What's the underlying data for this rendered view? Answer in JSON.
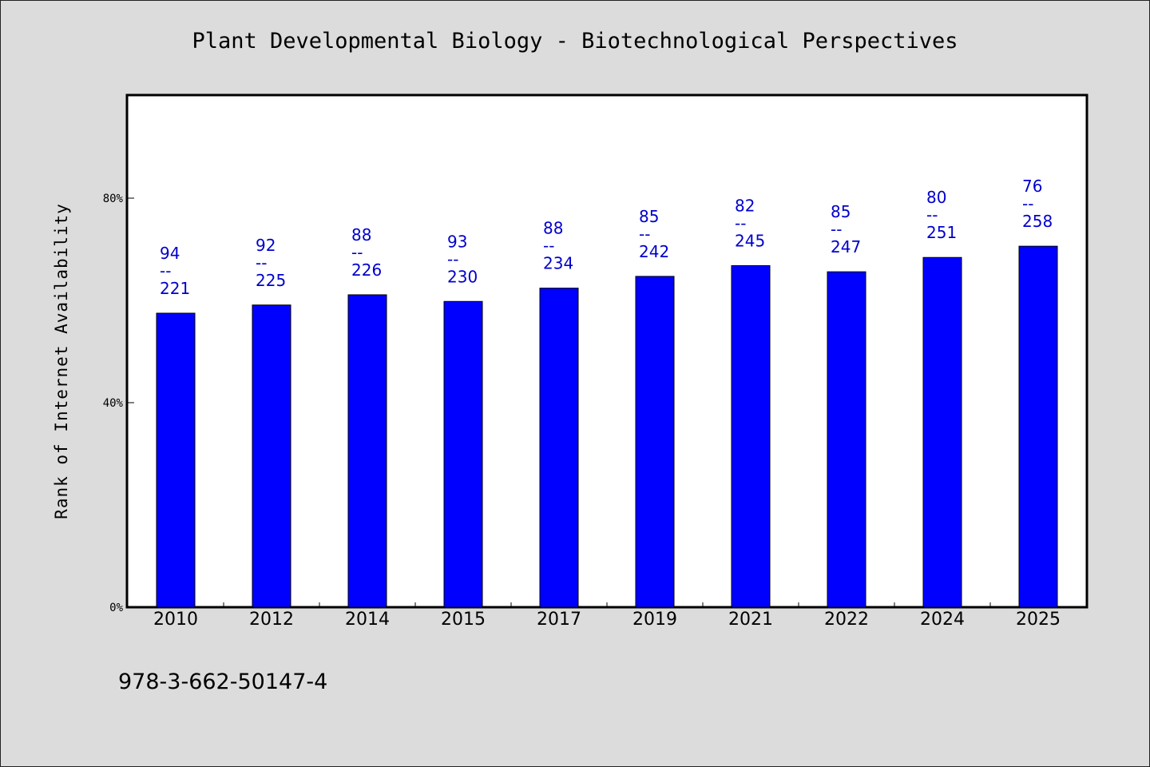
{
  "chart_data": {
    "type": "bar",
    "title": "Plant Developmental Biology - Biotechnological Perspectives",
    "xlabel": "",
    "ylabel": "Rank of Internet Availability",
    "ylim": [
      0,
      100
    ],
    "yticks": [
      {
        "value": 0,
        "label": "0%"
      },
      {
        "value": 40,
        "label": "40%"
      },
      {
        "value": 80,
        "label": "80%"
      }
    ],
    "categories": [
      "2010",
      "2012",
      "2014",
      "2015",
      "2017",
      "2019",
      "2021",
      "2022",
      "2024",
      "2025"
    ],
    "values": [
      57.5,
      59.1,
      61.1,
      59.8,
      62.4,
      64.7,
      66.8,
      65.6,
      68.4,
      70.6
    ],
    "data_labels": [
      {
        "top": "94",
        "sep": "--",
        "bottom": "221"
      },
      {
        "top": "92",
        "sep": "--",
        "bottom": "225"
      },
      {
        "top": "88",
        "sep": "--",
        "bottom": "226"
      },
      {
        "top": "93",
        "sep": "--",
        "bottom": "230"
      },
      {
        "top": "88",
        "sep": "--",
        "bottom": "234"
      },
      {
        "top": "85",
        "sep": "--",
        "bottom": "242"
      },
      {
        "top": "82",
        "sep": "--",
        "bottom": "245"
      },
      {
        "top": "85",
        "sep": "--",
        "bottom": "247"
      },
      {
        "top": "80",
        "sep": "--",
        "bottom": "251"
      },
      {
        "top": "76",
        "sep": "--",
        "bottom": "258"
      }
    ],
    "bar_color": "#0000ff",
    "label_color": "#0000cc",
    "grid": false,
    "legend": "none"
  },
  "footer": {
    "isbn": "978-3-662-50147-4"
  },
  "colors": {
    "background": "#dcdcdc",
    "plot_background": "#ffffff"
  }
}
